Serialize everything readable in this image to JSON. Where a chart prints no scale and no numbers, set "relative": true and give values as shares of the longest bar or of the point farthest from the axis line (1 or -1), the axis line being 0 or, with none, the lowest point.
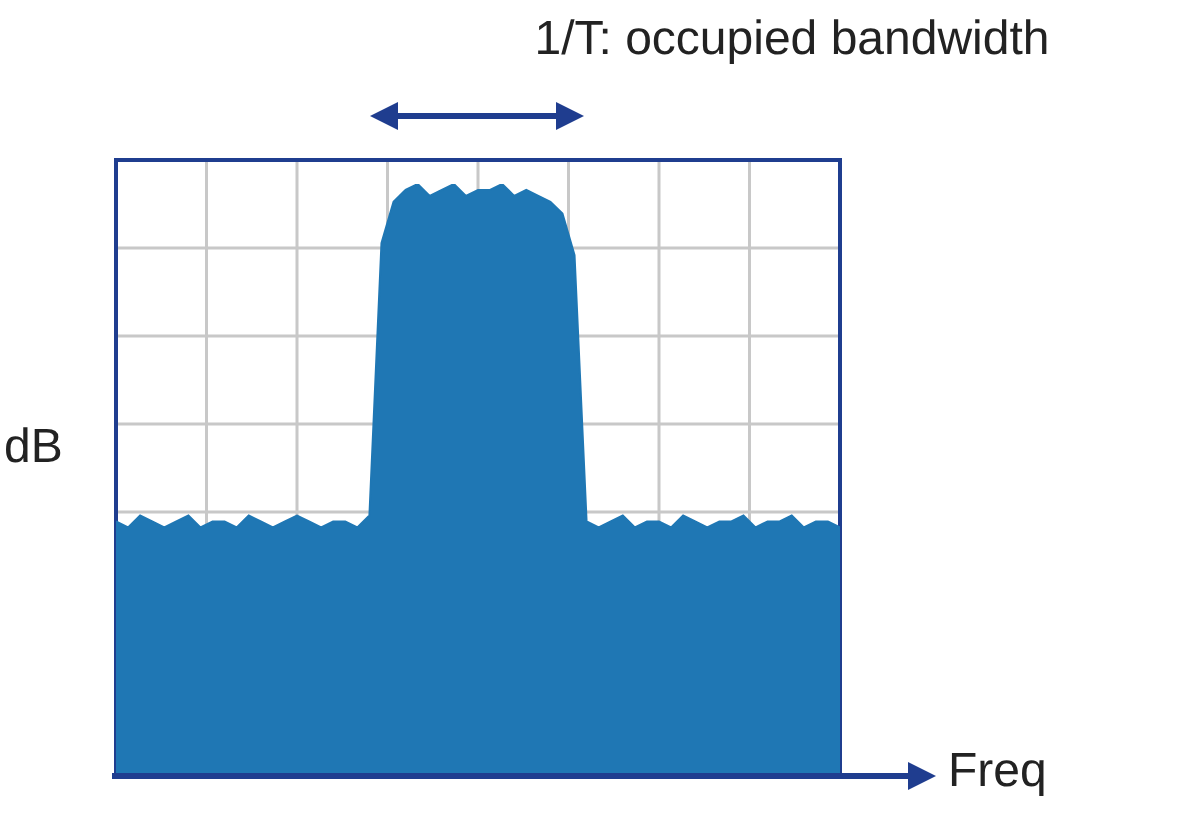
{
  "chart_data": {
    "type": "area",
    "relative": true,
    "grid": true,
    "xlabel": "Freq",
    "ylabel": "dB",
    "annotations": [
      "1/T: occupied bandwidth"
    ],
    "categories": [
      null,
      null,
      null,
      null,
      null,
      null,
      null,
      null,
      null,
      null,
      null,
      null,
      null,
      null,
      null,
      null,
      null,
      null,
      null,
      null,
      null,
      null,
      null,
      null,
      null,
      null,
      null,
      null,
      null,
      null,
      null,
      null,
      null,
      null,
      null,
      null,
      null,
      null,
      null,
      null,
      null,
      null,
      null,
      null,
      null,
      null,
      null,
      null,
      null,
      null,
      null,
      null,
      null,
      null,
      null,
      null,
      null,
      null,
      null,
      null,
      null
    ],
    "series": [
      {
        "color": "#1f77b4",
        "values": [
          0.43,
          0.42,
          0.44,
          0.43,
          0.42,
          0.43,
          0.44,
          0.42,
          0.43,
          0.43,
          0.42,
          0.44,
          0.43,
          0.42,
          0.43,
          0.44,
          0.43,
          0.42,
          0.43,
          0.43,
          0.42,
          0.44,
          0.9,
          0.97,
          0.99,
          1,
          0.98,
          0.99,
          1,
          0.98,
          0.99,
          0.99,
          1,
          0.98,
          0.99,
          0.98,
          0.97,
          0.95,
          0.88,
          0.43,
          0.42,
          0.43,
          0.44,
          0.42,
          0.43,
          0.43,
          0.42,
          0.44,
          0.43,
          0.42,
          0.43,
          0.43,
          0.44,
          0.42,
          0.43,
          0.43,
          0.44,
          0.42,
          0.43,
          0.43,
          0.42
        ]
      }
    ]
  }
}
